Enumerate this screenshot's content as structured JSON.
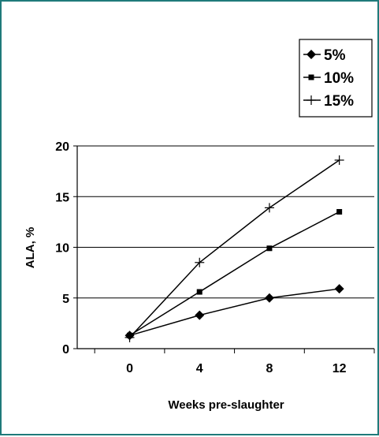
{
  "chart_data": {
    "type": "line",
    "title": "",
    "xlabel": "Weeks pre-slaughter",
    "ylabel": "ALA, %",
    "x": [
      0,
      4,
      8,
      12
    ],
    "xticks": [
      "0",
      "4",
      "8",
      "12"
    ],
    "yticks": [
      "0",
      "5",
      "10",
      "15",
      "20"
    ],
    "xlim": [
      -3,
      14
    ],
    "ylim": [
      0,
      20
    ],
    "grid": "horizontal",
    "legend_position": "top-right",
    "series": [
      {
        "name": "5%",
        "marker": "diamond",
        "values": [
          1.3,
          3.3,
          5.0,
          5.9
        ]
      },
      {
        "name": "10%",
        "marker": "square",
        "values": [
          1.3,
          5.6,
          9.9,
          13.5
        ]
      },
      {
        "name": "15%",
        "marker": "plus",
        "values": [
          1.1,
          8.5,
          13.9,
          18.6
        ]
      }
    ],
    "colors": {
      "frame": "#1f7a7a",
      "lines": "#000000",
      "grid": "#000000"
    }
  }
}
